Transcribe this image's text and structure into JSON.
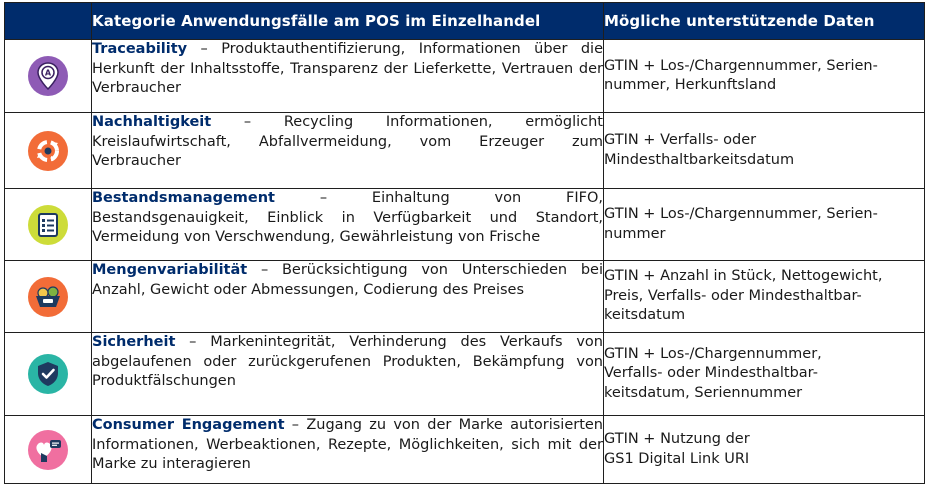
{
  "table": {
    "header": {
      "category": "Kategorie Anwendungsfälle am POS im Einzelhandel",
      "data": "Mögliche unterstützende Daten"
    },
    "rows": [
      {
        "icon": "map-pin-icon",
        "color": "#8e5bb5",
        "term": "Traceability",
        "description": " – Produktauthentifizierung, Informationen über die Herkunft der Inhaltsstoffe, Transparenz der Lieferkette, Vertrauen der Verbraucher",
        "data_lines": [
          "GTIN + Los-/Chargennummer, Serien-",
          "nummer, Herkunftsland"
        ]
      },
      {
        "icon": "recycle-icon",
        "color": "#f26c38",
        "term": "Nachhaltigkeit",
        "description": " – Recycling Informationen, ermöglicht Kreislaufwirtschaft, Abfallvermeidung, vom Erzeuger zum Verbraucher",
        "data_lines": [
          "GTIN + Verfalls- oder",
          "Mindesthaltbarkeitsdatum"
        ]
      },
      {
        "icon": "checklist-icon",
        "color": "#cddc39",
        "term": "Bestandsmanagement",
        "description": " – Einhaltung von FIFO, Bestandsgenauigkeit, Einblick in Verfügbarkeit und Standort, Vermeidung von Verschwendung, Gewährleistung von Frische",
        "data_lines": [
          "GTIN + Los-/Chargennummer, Serien-",
          "nummer"
        ]
      },
      {
        "icon": "basket-icon",
        "color": "#f26c38",
        "term": "Mengenvariabilität",
        "description": " – Berücksichtigung von Unterschieden bei Anzahl, Gewicht oder Abmessungen, Codierung des Preises",
        "data_lines": [
          "GTIN + Anzahl in Stück, Nettogewicht,",
          "Preis, Verfalls- oder Mindesthaltbar-",
          "keitsdatum"
        ]
      },
      {
        "icon": "shield-check-icon",
        "color": "#2ab5a5",
        "term": "Sicherheit",
        "description": " – Markenintegrität, Verhinderung des Verkaufs von abgelaufenen oder zurückgerufenen Produkten, Bekämpfung von Produktfälschungen",
        "data_lines": [
          "GTIN + Los-/Chargennummer,",
          "Verfalls- oder Mindesthaltbar-",
          "keitsdatum, Seriennummer"
        ]
      },
      {
        "icon": "heart-chat-icon",
        "color": "#f06fa0",
        "term": "Consumer Engagement",
        "description": " – Zugang zu von der Marke autorisierten Informationen, Werbeaktionen, Rezepte, Möglichkeiten, sich mit der Marke zu interagieren",
        "data_lines": [
          "GTIN + Nutzung der",
          "GS1 Digital Link URI"
        ]
      }
    ]
  }
}
